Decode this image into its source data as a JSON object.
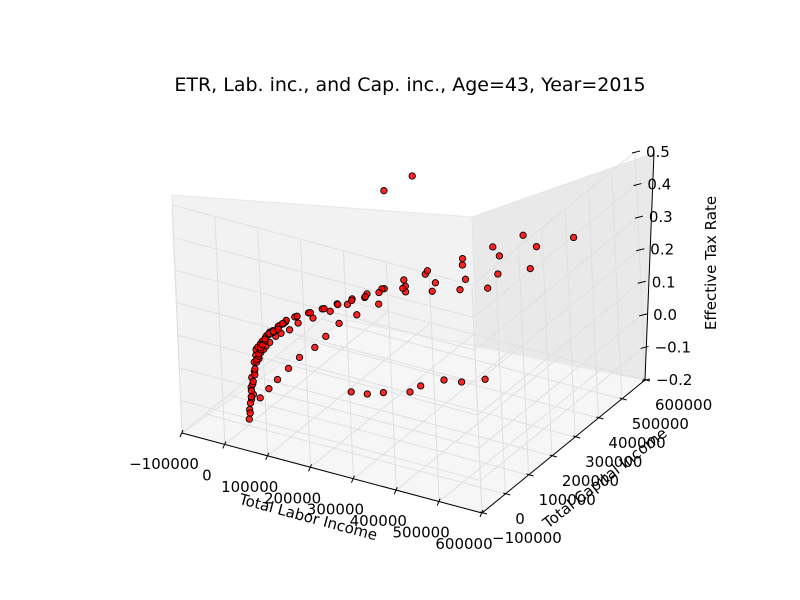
{
  "chart_data": {
    "type": "scatter",
    "projection": "3d",
    "title": "ETR, Lab. inc., and Cap. inc., Age=43, Year=2015",
    "xlabel": "Total Labor Income",
    "ylabel": "Total Capital Income",
    "zlabel": "Effective Tax Rate",
    "xlim": [
      -100000,
      600000
    ],
    "ylim": [
      -100000,
      600000
    ],
    "zlim": [
      -0.2,
      0.5
    ],
    "xticks": [
      "−100000",
      "0",
      "100000",
      "200000",
      "300000",
      "400000",
      "500000",
      "600000"
    ],
    "yticks": [
      "−100000",
      "0",
      "100000",
      "200000",
      "300000",
      "400000",
      "500000",
      "600000"
    ],
    "zticks": [
      "−0.2",
      "−0.1",
      "0.0",
      "0.1",
      "0.2",
      "0.3",
      "0.4",
      "0.5"
    ],
    "grid": true,
    "marker_color": "#ff0000",
    "marker_edge_color": "#000000",
    "series": [
      {
        "points": [
          [
            10000,
            2000,
            -0.08
          ],
          [
            12000,
            3000,
            -0.05
          ],
          [
            15000,
            1000,
            -0.1
          ],
          [
            8000,
            5000,
            -0.12
          ],
          [
            18000,
            4000,
            -0.03
          ],
          [
            20000,
            2000,
            0.0
          ],
          [
            22000,
            6000,
            0.02
          ],
          [
            25000,
            3000,
            0.04
          ],
          [
            28000,
            8000,
            0.01
          ],
          [
            30000,
            2000,
            0.05
          ],
          [
            32000,
            10000,
            0.03
          ],
          [
            35000,
            5000,
            0.06
          ],
          [
            38000,
            12000,
            0.04
          ],
          [
            40000,
            3000,
            0.07
          ],
          [
            42000,
            15000,
            0.05
          ],
          [
            45000,
            8000,
            0.08
          ],
          [
            48000,
            20000,
            0.06
          ],
          [
            50000,
            5000,
            0.09
          ],
          [
            55000,
            10000,
            0.1
          ],
          [
            60000,
            25000,
            0.08
          ],
          [
            65000,
            6000,
            0.11
          ],
          [
            70000,
            30000,
            0.09
          ],
          [
            75000,
            12000,
            0.12
          ],
          [
            80000,
            8000,
            0.13
          ],
          [
            85000,
            40000,
            0.1
          ],
          [
            90000,
            15000,
            0.14
          ],
          [
            95000,
            10000,
            0.15
          ],
          [
            100000,
            50000,
            0.12
          ],
          [
            110000,
            20000,
            0.16
          ],
          [
            120000,
            12000,
            0.17
          ],
          [
            130000,
            60000,
            0.14
          ],
          [
            140000,
            25000,
            0.18
          ],
          [
            150000,
            15000,
            0.19
          ],
          [
            160000,
            80000,
            0.16
          ],
          [
            170000,
            30000,
            0.2
          ],
          [
            180000,
            20000,
            0.21
          ],
          [
            190000,
            100000,
            0.18
          ],
          [
            200000,
            40000,
            0.22
          ],
          [
            210000,
            25000,
            0.23
          ],
          [
            220000,
            120000,
            0.2
          ],
          [
            230000,
            50000,
            0.24
          ],
          [
            240000,
            30000,
            0.25
          ],
          [
            250000,
            150000,
            0.22
          ],
          [
            260000,
            60000,
            0.26
          ],
          [
            270000,
            35000,
            0.27
          ],
          [
            280000,
            180000,
            0.24
          ],
          [
            290000,
            70000,
            0.28
          ],
          [
            300000,
            40000,
            0.29
          ],
          [
            320000,
            200000,
            0.26
          ],
          [
            340000,
            80000,
            0.3
          ],
          [
            360000,
            45000,
            0.31
          ],
          [
            380000,
            250000,
            0.28
          ],
          [
            400000,
            100000,
            0.32
          ],
          [
            420000,
            50000,
            0.33
          ],
          [
            440000,
            300000,
            0.3
          ],
          [
            460000,
            120000,
            0.34
          ],
          [
            480000,
            60000,
            0.35
          ],
          [
            500000,
            350000,
            0.32
          ],
          [
            520000,
            150000,
            0.36
          ],
          [
            540000,
            70000,
            0.37
          ],
          [
            560000,
            400000,
            0.34
          ],
          [
            580000,
            180000,
            0.38
          ],
          [
            5000,
            500,
            -0.15
          ],
          [
            7000,
            1500,
            -0.13
          ],
          [
            3000,
            800,
            -0.18
          ],
          [
            6000,
            200,
            -0.16
          ],
          [
            9000,
            2500,
            -0.11
          ],
          [
            11000,
            700,
            -0.09
          ],
          [
            14000,
            1800,
            -0.07
          ],
          [
            16000,
            900,
            -0.06
          ],
          [
            19000,
            3500,
            -0.04
          ],
          [
            21000,
            1200,
            -0.02
          ],
          [
            24000,
            4500,
            0.0
          ],
          [
            26000,
            1600,
            0.01
          ],
          [
            29000,
            5500,
            0.02
          ],
          [
            31000,
            1900,
            0.03
          ],
          [
            34000,
            6500,
            0.04
          ],
          [
            36000,
            2200,
            0.05
          ],
          [
            39000,
            7500,
            0.06
          ],
          [
            41000,
            2600,
            0.06
          ],
          [
            44000,
            9000,
            0.07
          ],
          [
            47000,
            3100,
            0.08
          ],
          [
            52000,
            11000,
            0.09
          ],
          [
            57000,
            3600,
            0.1
          ],
          [
            62000,
            13000,
            0.1
          ],
          [
            67000,
            4200,
            0.11
          ],
          [
            72000,
            16000,
            0.12
          ],
          [
            78000,
            5000,
            0.12
          ],
          [
            83000,
            19000,
            0.13
          ],
          [
            88000,
            6000,
            0.14
          ],
          [
            150000,
            300000,
            0.05
          ],
          [
            180000,
            350000,
            0.08
          ],
          [
            200000,
            420000,
            0.1
          ],
          [
            250000,
            480000,
            0.12
          ],
          [
            120000,
            260000,
            0.03
          ],
          [
            100000,
            220000,
            0.02
          ],
          [
            90000,
            180000,
            0.0
          ],
          [
            300000,
            520000,
            0.15
          ],
          [
            350000,
            560000,
            0.18
          ],
          [
            80000,
            150000,
            -0.02
          ],
          [
            60000,
            120000,
            -0.04
          ],
          [
            50000,
            90000,
            -0.06
          ],
          [
            40000,
            60000,
            -0.08
          ],
          [
            30000,
            40000,
            -0.1
          ],
          [
            20000,
            20000,
            -0.12
          ],
          [
            400000,
            20000,
            0.05
          ],
          [
            450000,
            30000,
            0.08
          ],
          [
            500000,
            15000,
            0.1
          ],
          [
            550000,
            25000,
            0.12
          ],
          [
            380000,
            10000,
            0.03
          ],
          [
            320000,
            5000,
            0.01
          ],
          [
            280000,
            8000,
            -0.01
          ],
          [
            240000,
            12000,
            -0.02
          ],
          [
            60000,
            500000,
            0.25
          ],
          [
            100000,
            550000,
            0.28
          ]
        ]
      }
    ]
  }
}
